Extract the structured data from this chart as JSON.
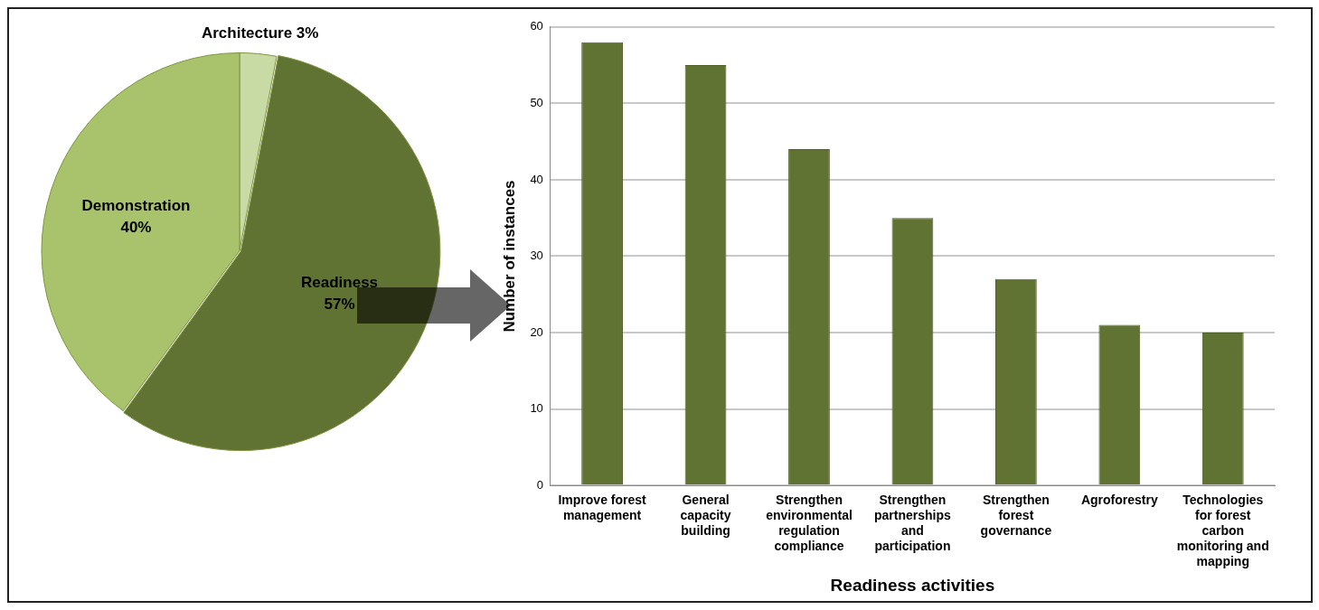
{
  "chart_data": [
    {
      "type": "pie",
      "categories": [
        "Architecture",
        "Readiness",
        "Demonstration"
      ],
      "values": [
        3,
        57,
        40
      ],
      "colors": [
        "#c9dba4",
        "#617333",
        "#a8c36b"
      ],
      "value_labels": [
        "3%",
        "57%",
        "40%"
      ],
      "legend": false
    },
    {
      "type": "bar",
      "categories": [
        "Improve forest management",
        "General capacity building",
        "Strengthen environmental regulation compliance",
        "Strengthen partnerships and participation",
        "Strengthen forest governance",
        "Agroforestry",
        "Technologies for forest carbon monitoring and mapping"
      ],
      "values": [
        58,
        55,
        44,
        35,
        27,
        21,
        20
      ],
      "color": "#617333",
      "xlabel": "Readiness activities",
      "ylabel": "Number of instances",
      "ylim": [
        0,
        60
      ],
      "yticks": [
        0,
        10,
        20,
        30,
        40,
        50,
        60
      ],
      "grid": "y",
      "legend": false
    }
  ]
}
